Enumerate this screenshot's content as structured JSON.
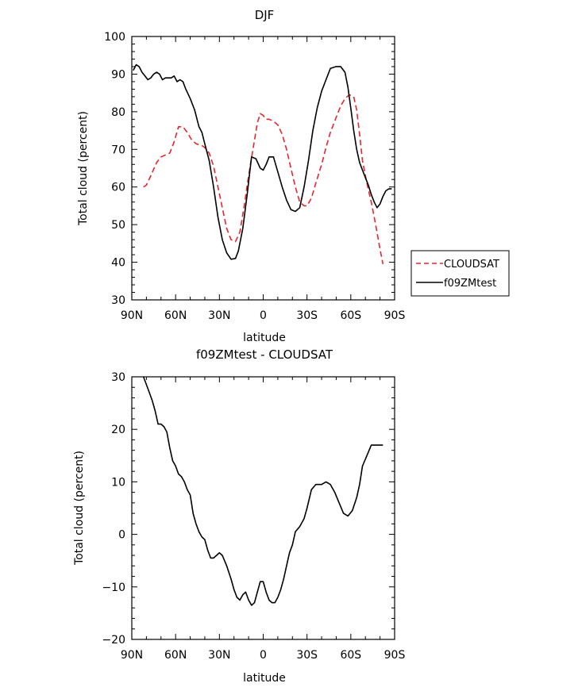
{
  "chart_data": [
    {
      "type": "line",
      "title": "DJF",
      "xlabel": "latitude",
      "ylabel": "Total cloud (percent)",
      "xlim": [
        90,
        -90
      ],
      "ylim": [
        30,
        100
      ],
      "x_ticks": [
        90,
        60,
        30,
        0,
        -30,
        -60,
        -90
      ],
      "x_tick_labels": [
        "90N",
        "60N",
        "30N",
        "0",
        "30S",
        "60S",
        "90S"
      ],
      "y_ticks": [
        30,
        40,
        50,
        60,
        70,
        80,
        90,
        100
      ],
      "y_tick_labels": [
        "30",
        "40",
        "50",
        "60",
        "70",
        "80",
        "90",
        "100"
      ],
      "legend_position": "right",
      "series": [
        {
          "name": "CLOUDSAT",
          "color": "#e8262d",
          "dash": "dashed",
          "x": [
            82,
            80,
            77,
            73,
            70,
            67,
            64,
            61,
            58,
            55,
            52,
            49,
            46,
            42,
            40,
            37,
            34,
            31,
            28,
            25,
            22,
            19,
            16,
            13,
            10,
            7,
            4,
            2,
            0,
            -2,
            -4,
            -7,
            -10,
            -13,
            -16,
            -19,
            -22,
            -25,
            -28,
            -30,
            -33,
            -36,
            -40,
            -43,
            -46,
            -50,
            -53,
            -56,
            -59,
            -62,
            -64,
            -66,
            -68,
            -71,
            -74,
            -77,
            -80,
            -82
          ],
          "y": [
            60,
            60.5,
            63,
            66.5,
            68,
            68.5,
            69,
            72,
            76,
            76,
            74.5,
            72.5,
            71.5,
            71,
            70.5,
            69,
            65.5,
            60,
            54.5,
            49,
            46,
            45.5,
            48,
            55,
            63,
            70,
            77,
            79.5,
            79,
            78,
            78,
            77.5,
            76.5,
            74,
            70,
            65,
            60,
            56,
            55,
            55,
            57,
            61,
            66,
            70.5,
            74.5,
            78.5,
            81.5,
            83.5,
            84.5,
            84,
            80.5,
            74,
            67,
            61,
            56,
            50,
            43.5,
            39.5
          ]
        },
        {
          "name": "f09ZMtest",
          "color": "#000000",
          "dash": "solid",
          "x": [
            89,
            87,
            85,
            83,
            81,
            79,
            77,
            75,
            73,
            71,
            69,
            67,
            65,
            63,
            61,
            59,
            57,
            55,
            53,
            50,
            47,
            44,
            42,
            40,
            37,
            34,
            31,
            28,
            25,
            22,
            19,
            17,
            14,
            11,
            8,
            5,
            2,
            0,
            -2,
            -4,
            -7,
            -10,
            -13,
            -16,
            -19,
            -22,
            -25,
            -28,
            -31,
            -34,
            -37,
            -40,
            -43,
            -46,
            -50,
            -53,
            -56,
            -58,
            -60,
            -62,
            -64,
            -66,
            -68,
            -70,
            -72,
            -74,
            -76,
            -78,
            -80,
            -82,
            -84,
            -86,
            -88
          ],
          "y": [
            91,
            92.5,
            92,
            90.5,
            89.5,
            88.5,
            89,
            90,
            90.5,
            90,
            88.5,
            89,
            89,
            89,
            89.5,
            88,
            88.5,
            88,
            86,
            83.5,
            80.5,
            76,
            74.5,
            71.5,
            67,
            60,
            52,
            46,
            42.5,
            40.8,
            41,
            43,
            49,
            58,
            68,
            67.5,
            65,
            64.5,
            66,
            68,
            68,
            64,
            60,
            56.5,
            54,
            53.5,
            54.5,
            60,
            67,
            75,
            81,
            85.5,
            88.5,
            91.5,
            92,
            92,
            90.5,
            86.5,
            81,
            75,
            70,
            66.5,
            64.5,
            62.5,
            60.5,
            58,
            56,
            54.5,
            55.5,
            57.5,
            59,
            59.5,
            59.5
          ]
        }
      ]
    },
    {
      "type": "line",
      "title": "f09ZMtest - CLOUDSAT",
      "xlabel": "latitude",
      "ylabel": "Total cloud (percent)",
      "xlim": [
        90,
        -90
      ],
      "ylim": [
        -20,
        30
      ],
      "x_ticks": [
        90,
        60,
        30,
        0,
        -30,
        -60,
        -90
      ],
      "x_tick_labels": [
        "90N",
        "60N",
        "30N",
        "0",
        "30S",
        "60S",
        "90S"
      ],
      "y_ticks": [
        -20,
        -10,
        0,
        10,
        20,
        30
      ],
      "y_tick_labels": [
        "-20",
        "-10",
        "0",
        "10",
        "20",
        "30"
      ],
      "series": [
        {
          "color": "#000000",
          "dash": "solid",
          "x": [
            82,
            80,
            78,
            76,
            74,
            72,
            70,
            68,
            66,
            64,
            62,
            60,
            58,
            56,
            54,
            52,
            50,
            48,
            46,
            44,
            42,
            40,
            38,
            36,
            34,
            32,
            30,
            28,
            25,
            22,
            20,
            18,
            16,
            14,
            12,
            10,
            8,
            6,
            4,
            2,
            0,
            -2,
            -4,
            -6,
            -8,
            -10,
            -12,
            -14,
            -16,
            -18,
            -20,
            -22,
            -25,
            -28,
            -30,
            -33,
            -36,
            -38,
            -40,
            -43,
            -46,
            -49,
            -52,
            -55,
            -58,
            -61,
            -64,
            -66,
            -68,
            -71,
            -74,
            -77,
            -80,
            -82
          ],
          "y": [
            30,
            28.5,
            27,
            25.5,
            23.5,
            21,
            21,
            20.5,
            19.5,
            16.5,
            14,
            13,
            11.5,
            11,
            10,
            8.5,
            7.5,
            4,
            2,
            0.5,
            -0.5,
            -1,
            -3,
            -4.5,
            -4.5,
            -4,
            -3.5,
            -4,
            -6,
            -8.5,
            -10.5,
            -12,
            -12.5,
            -11.5,
            -11,
            -12.5,
            -13.5,
            -13,
            -11,
            -9,
            -9,
            -11,
            -12.5,
            -13,
            -13,
            -12,
            -10.5,
            -8.5,
            -6,
            -3.5,
            -2,
            0.5,
            1.5,
            3,
            5,
            8.5,
            9.5,
            9.5,
            9.5,
            10,
            9.5,
            8,
            6,
            4,
            3.5,
            4.5,
            7,
            9.5,
            13,
            15,
            17,
            17,
            17,
            17
          ]
        }
      ]
    }
  ]
}
